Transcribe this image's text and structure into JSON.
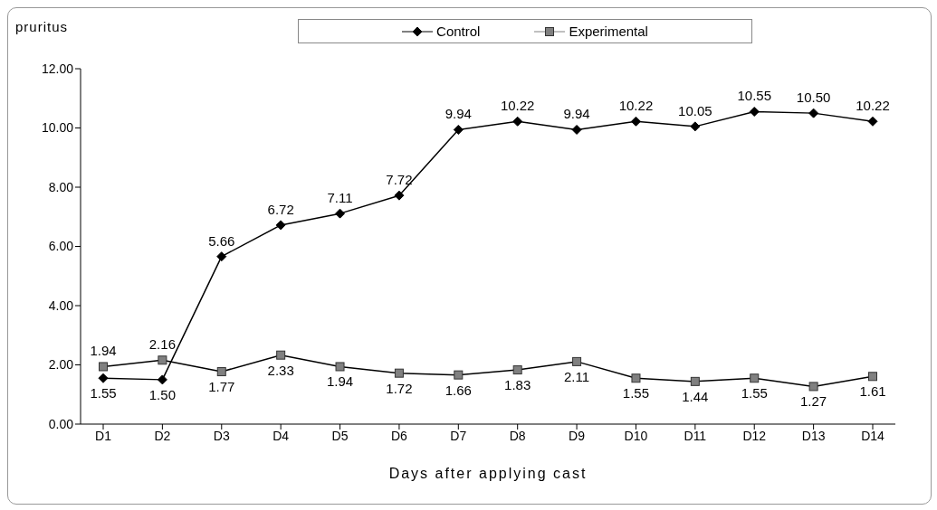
{
  "chart_data": {
    "type": "line",
    "xlabel": "Days after applying cast",
    "ylabel": "pruritus",
    "categories": [
      "D1",
      "D2",
      "D3",
      "D4",
      "D5",
      "D6",
      "D7",
      "D8",
      "D9",
      "D10",
      "D11",
      "D12",
      "D13",
      "D14"
    ],
    "series": [
      {
        "name": "Control",
        "color": "#000000",
        "marker": "diamond",
        "values": [
          1.55,
          1.5,
          5.66,
          6.72,
          7.11,
          7.72,
          9.94,
          10.22,
          9.94,
          10.22,
          10.05,
          10.55,
          10.5,
          10.22
        ],
        "value_labels": [
          "1.55",
          "1.50",
          "5.66",
          "6.72",
          "7.11",
          "7.72",
          "9.94",
          "10.22",
          "9.94",
          "10.22",
          "10.05",
          "10.55",
          "10.50",
          "10.22"
        ]
      },
      {
        "name": "Experimental",
        "color": "#808080",
        "marker": "square",
        "values": [
          1.94,
          2.16,
          1.77,
          2.33,
          1.94,
          1.72,
          1.66,
          1.83,
          2.11,
          1.55,
          1.44,
          1.55,
          1.27,
          1.61
        ],
        "value_labels": [
          "1.94",
          "2.16",
          "1.77",
          "2.33",
          "1.94",
          "1.72",
          "1.66",
          "1.83",
          "2.11",
          "1.55",
          "1.44",
          "1.55",
          "1.27",
          "1.61"
        ]
      }
    ],
    "ylim": [
      0,
      12
    ],
    "yticks": [
      {
        "value": 0,
        "label": "0.00"
      },
      {
        "value": 2,
        "label": "2.00"
      },
      {
        "value": 4,
        "label": "4.00"
      },
      {
        "value": 6,
        "label": "6.00"
      },
      {
        "value": 8,
        "label": "8.00"
      },
      {
        "value": 10,
        "label": "10.00"
      },
      {
        "value": 12,
        "label": "12.00"
      }
    ],
    "grid": false,
    "legend": "top",
    "line_style": "solid"
  }
}
